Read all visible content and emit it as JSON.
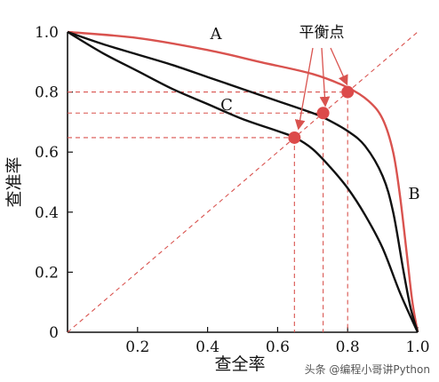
{
  "chart_data": {
    "type": "line",
    "xlabel": "查全率",
    "ylabel": "查准率",
    "xlim": [
      0,
      1
    ],
    "ylim": [
      0,
      1
    ],
    "x_ticks": [
      "0",
      "0.2",
      "0.4",
      "0.6",
      "0.8",
      "1.0"
    ],
    "y_ticks": [
      "0",
      "0.2",
      "0.4",
      "0.6",
      "0.8",
      "1.0"
    ],
    "grid": false,
    "series": [
      {
        "name": "A",
        "color": "#d9534f",
        "x": [
          0,
          0.2,
          0.4,
          0.55,
          0.7,
          0.8,
          0.86,
          0.9,
          0.93,
          0.95,
          0.97,
          0.985,
          1.0
        ],
        "y": [
          1.0,
          0.98,
          0.94,
          0.9,
          0.86,
          0.815,
          0.77,
          0.71,
          0.6,
          0.45,
          0.25,
          0.1,
          0
        ]
      },
      {
        "name": "B",
        "color": "#111111",
        "x": [
          0,
          0.1,
          0.2,
          0.3,
          0.4,
          0.5,
          0.6,
          0.7,
          0.74,
          0.8,
          0.85,
          0.9,
          0.93,
          0.96,
          0.98,
          1.0
        ],
        "y": [
          1.0,
          0.96,
          0.925,
          0.89,
          0.85,
          0.81,
          0.77,
          0.73,
          0.71,
          0.67,
          0.62,
          0.52,
          0.4,
          0.2,
          0.08,
          0
        ]
      },
      {
        "name": "C",
        "color": "#111111",
        "x": [
          0,
          0.1,
          0.2,
          0.3,
          0.4,
          0.5,
          0.6,
          0.65,
          0.7,
          0.75,
          0.8,
          0.85,
          0.9,
          0.95,
          1.0
        ],
        "y": [
          1.0,
          0.93,
          0.87,
          0.81,
          0.76,
          0.71,
          0.67,
          0.648,
          0.61,
          0.55,
          0.48,
          0.39,
          0.28,
          0.13,
          0
        ]
      }
    ],
    "curve_labels": [
      "A",
      "B",
      "C"
    ],
    "break_even_line": {
      "x": [
        0,
        1
      ],
      "y": [
        0,
        1
      ],
      "color": "#d9534f",
      "style": "dashed"
    },
    "break_even_points": [
      {
        "curve": "C",
        "x": 0.648,
        "y": 0.648
      },
      {
        "curve": "B",
        "x": 0.73,
        "y": 0.73
      },
      {
        "curve": "A",
        "x": 0.8,
        "y": 0.8
      }
    ],
    "annotation": {
      "text": "平衡点",
      "color": "#111111",
      "arrow_color": "#d9534f"
    }
  },
  "watermark": "头条 @编程小哥讲Python"
}
